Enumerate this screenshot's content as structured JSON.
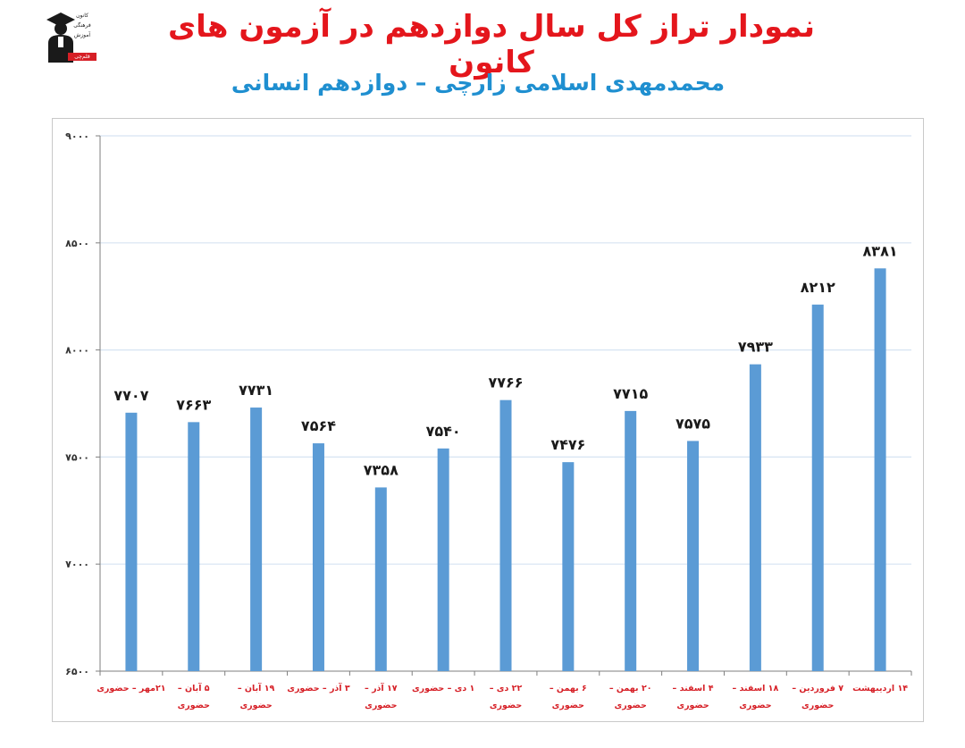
{
  "logo": {
    "lines": [
      "کانون",
      "فرهنگی",
      "آموزش"
    ],
    "badge": "قلم‌چی",
    "icon": "graduate-icon"
  },
  "header": {
    "title": "نمودار تراز کل سال دوازدهم در آزمون های کانون",
    "subtitle": "محمدمهدی اسلامی زارچی – دوازدهم انسانی"
  },
  "colors": {
    "title": "#e4161c",
    "subtitle": "#1f8fd0",
    "bar": "#5b9bd5",
    "grid": "#d6e4f2",
    "category_label": "#d61f26",
    "value_label": "#1a1a1a"
  },
  "chart_data": {
    "type": "bar",
    "title": "",
    "xlabel": "",
    "ylabel": "",
    "ylim": [
      6500,
      9000
    ],
    "yticks": [
      6500,
      7000,
      7500,
      8000,
      8500,
      9000
    ],
    "ytick_labels": [
      "۶۵۰۰",
      "۷۰۰۰",
      "۷۵۰۰",
      "۸۰۰۰",
      "۸۵۰۰",
      "۹۰۰۰"
    ],
    "grid": true,
    "legend": "none",
    "categories": [
      [
        "۲۱مهر – حضوری"
      ],
      [
        "۵ آبان –",
        "حضوری"
      ],
      [
        "۱۹ آبان –",
        "حضوری"
      ],
      [
        "۳ آذر – حضوری"
      ],
      [
        "۱۷ آذر –",
        "حضوری"
      ],
      [
        "۱ دی – حضوری"
      ],
      [
        "۲۲ دی –",
        "حضوری"
      ],
      [
        "۶ بهمن –",
        "حضوری"
      ],
      [
        "۲۰ بهمن –",
        "حضوری"
      ],
      [
        "۴ اسفند –",
        "حضوری"
      ],
      [
        "۱۸ اسفند –",
        "حضوری"
      ],
      [
        "۷ فروردین –",
        "حضوری"
      ],
      [
        "۱۴ اردیبهشت"
      ]
    ],
    "values": [
      7707,
      7663,
      7731,
      7564,
      7358,
      7540,
      7766,
      7476,
      7715,
      7575,
      7933,
      8212,
      8381
    ],
    "value_labels": [
      "۷۷۰۷",
      "۷۶۶۳",
      "۷۷۳۱",
      "۷۵۶۴",
      "۷۳۵۸",
      "۷۵۴۰",
      "۷۷۶۶",
      "۷۴۷۶",
      "۷۷۱۵",
      "۷۵۷۵",
      "۷۹۳۳",
      "۸۲۱۲",
      "۸۳۸۱"
    ]
  }
}
